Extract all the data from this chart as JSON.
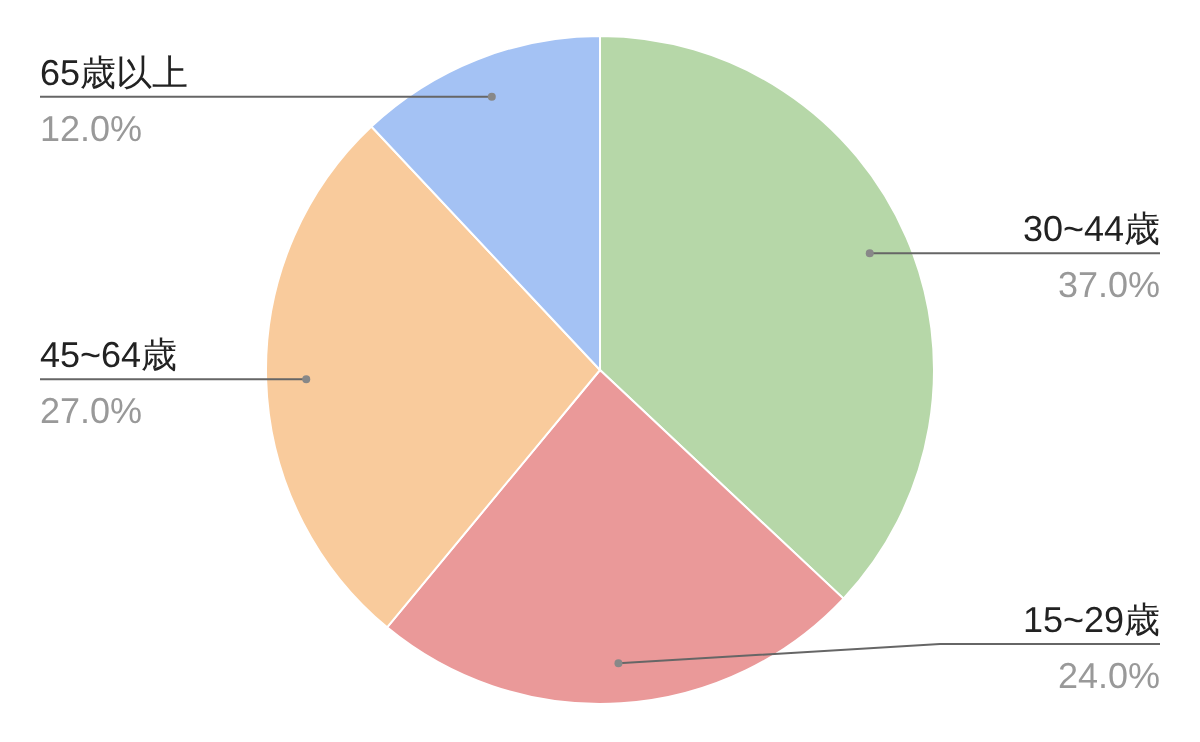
{
  "chart_data": {
    "type": "pie",
    "categories": [
      "30~44歳",
      "15~29歳",
      "45~64歳",
      "65歳以上"
    ],
    "values": [
      37.0,
      24.0,
      27.0,
      12.0
    ],
    "value_labels": [
      "37.0%",
      "24.0%",
      "27.0%",
      "12.0%"
    ],
    "colors": [
      "#b6d7a8",
      "#ea9999",
      "#f9cb9c",
      "#a4c2f4"
    ]
  }
}
